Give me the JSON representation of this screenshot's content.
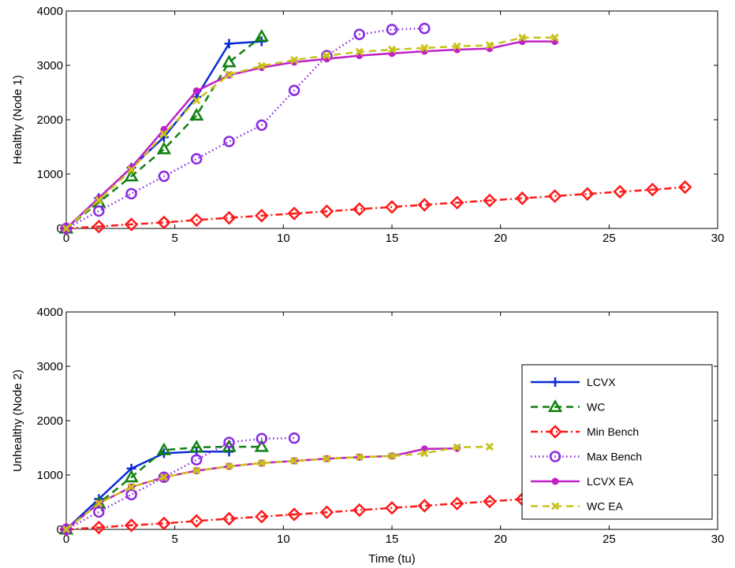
{
  "chart_data": [
    {
      "type": "line",
      "title": "",
      "xlabel": "",
      "ylabel": "Healthy (Node 1)",
      "xlim": [
        0,
        30
      ],
      "ylim": [
        0,
        4000
      ],
      "xticks": [
        0,
        5,
        10,
        15,
        20,
        25,
        30
      ],
      "yticks": [
        0,
        1000,
        2000,
        3000,
        4000
      ],
      "grid": false,
      "legend": false,
      "series": [
        {
          "name": "LCVX",
          "color": "#0a2bd6",
          "marker": "plus",
          "dash": "solid",
          "x": [
            0,
            1.5,
            3,
            4.5,
            6,
            7.5,
            9
          ],
          "y": [
            0,
            560,
            1120,
            1680,
            2420,
            3400,
            3440
          ]
        },
        {
          "name": "WC",
          "color": "#118011",
          "marker": "triangle",
          "dash": "dashed",
          "x": [
            0,
            1.5,
            3,
            4.5,
            6,
            7.5,
            9
          ],
          "y": [
            0,
            480,
            960,
            1460,
            2080,
            3060,
            3530
          ]
        },
        {
          "name": "Min Bench",
          "color": "#ff1a1a",
          "marker": "diamond",
          "dash": "dashdot",
          "x": [
            0,
            1.5,
            3,
            4.5,
            6,
            7.5,
            9,
            10.5,
            12,
            13.5,
            15,
            16.5,
            18,
            19.5,
            21,
            22.5,
            24,
            25.5,
            27,
            28.5
          ],
          "y": [
            0,
            35,
            75,
            110,
            155,
            195,
            235,
            275,
            315,
            355,
            395,
            435,
            475,
            515,
            555,
            595,
            635,
            675,
            715,
            760
          ]
        },
        {
          "name": "Max Bench",
          "color": "#8a2be2",
          "marker": "circle",
          "dash": "dotted",
          "x": [
            0,
            1.5,
            3,
            4.5,
            6,
            7.5,
            9,
            10.5,
            12,
            13.5,
            15,
            16.5
          ],
          "y": [
            0,
            320,
            640,
            960,
            1280,
            1600,
            1900,
            2540,
            3180,
            3570,
            3660,
            3680
          ]
        },
        {
          "name": "LCVX EA",
          "color": "#c020c8",
          "marker": "dot",
          "dash": "solid",
          "x": [
            0,
            1.5,
            3,
            4.5,
            6,
            7.5,
            9,
            10.5,
            12,
            13.5,
            15,
            16.5,
            18,
            19.5,
            21,
            22.5
          ],
          "y": [
            0,
            560,
            1120,
            1820,
            2530,
            2820,
            2960,
            3060,
            3120,
            3180,
            3220,
            3260,
            3290,
            3310,
            3440,
            3440
          ]
        },
        {
          "name": "WC EA",
          "color": "#c8c21a",
          "marker": "x",
          "dash": "dashed",
          "x": [
            0,
            1.5,
            3,
            4.5,
            6,
            7.5,
            9,
            10.5,
            12,
            13.5,
            15,
            16.5,
            18,
            19.5,
            21,
            22.5
          ],
          "y": [
            0,
            520,
            1080,
            1740,
            2360,
            2830,
            2990,
            3100,
            3180,
            3250,
            3290,
            3320,
            3350,
            3370,
            3510,
            3510
          ]
        }
      ]
    },
    {
      "type": "line",
      "title": "",
      "xlabel": "Time (tu)",
      "ylabel": "Unhealthy (Node 2)",
      "xlim": [
        0,
        30
      ],
      "ylim": [
        0,
        4000
      ],
      "xticks": [
        0,
        5,
        10,
        15,
        20,
        25,
        30
      ],
      "yticks": [
        0,
        1000,
        2000,
        3000,
        4000
      ],
      "grid": false,
      "legend": true,
      "legend_position": "lower-right",
      "series": [
        {
          "name": "LCVX",
          "color": "#0a2bd6",
          "marker": "plus",
          "dash": "solid",
          "x": [
            0,
            1.5,
            3,
            4.5,
            6,
            7.5
          ],
          "y": [
            0,
            560,
            1120,
            1400,
            1430,
            1430
          ]
        },
        {
          "name": "WC",
          "color": "#118011",
          "marker": "triangle",
          "dash": "dashed",
          "x": [
            0,
            1.5,
            3,
            4.5,
            6,
            7.5,
            9
          ],
          "y": [
            0,
            480,
            960,
            1460,
            1510,
            1520,
            1520
          ]
        },
        {
          "name": "Min Bench",
          "color": "#ff1a1a",
          "marker": "diamond",
          "dash": "dashdot",
          "x": [
            0,
            1.5,
            3,
            4.5,
            6,
            7.5,
            9,
            10.5,
            12,
            13.5,
            15,
            16.5,
            18,
            19.5,
            21,
            22.5,
            24,
            25.5,
            27,
            28.5
          ],
          "y": [
            0,
            35,
            75,
            110,
            155,
            195,
            235,
            275,
            315,
            355,
            395,
            435,
            475,
            515,
            555,
            595,
            635,
            675,
            715,
            760
          ]
        },
        {
          "name": "Max Bench",
          "color": "#8a2be2",
          "marker": "circle",
          "dash": "dotted",
          "x": [
            0,
            1.5,
            3,
            4.5,
            6,
            7.5,
            9,
            10.5
          ],
          "y": [
            0,
            320,
            640,
            960,
            1280,
            1600,
            1670,
            1680
          ]
        },
        {
          "name": "LCVX EA",
          "color": "#c020c8",
          "marker": "dot",
          "dash": "solid",
          "x": [
            0,
            1.5,
            3,
            4.5,
            6,
            7.5,
            9,
            10.5,
            12,
            13.5,
            15,
            16.5,
            18
          ],
          "y": [
            0,
            480,
            780,
            960,
            1080,
            1160,
            1220,
            1260,
            1300,
            1330,
            1350,
            1480,
            1490
          ]
        },
        {
          "name": "WC EA",
          "color": "#c8c21a",
          "marker": "x",
          "dash": "dashed",
          "x": [
            0,
            1.5,
            3,
            4.5,
            6,
            7.5,
            9,
            10.5,
            12,
            13.5,
            15,
            16.5,
            18,
            19.5
          ],
          "y": [
            0,
            480,
            780,
            960,
            1080,
            1160,
            1220,
            1260,
            1300,
            1330,
            1350,
            1400,
            1510,
            1520
          ]
        }
      ]
    }
  ]
}
